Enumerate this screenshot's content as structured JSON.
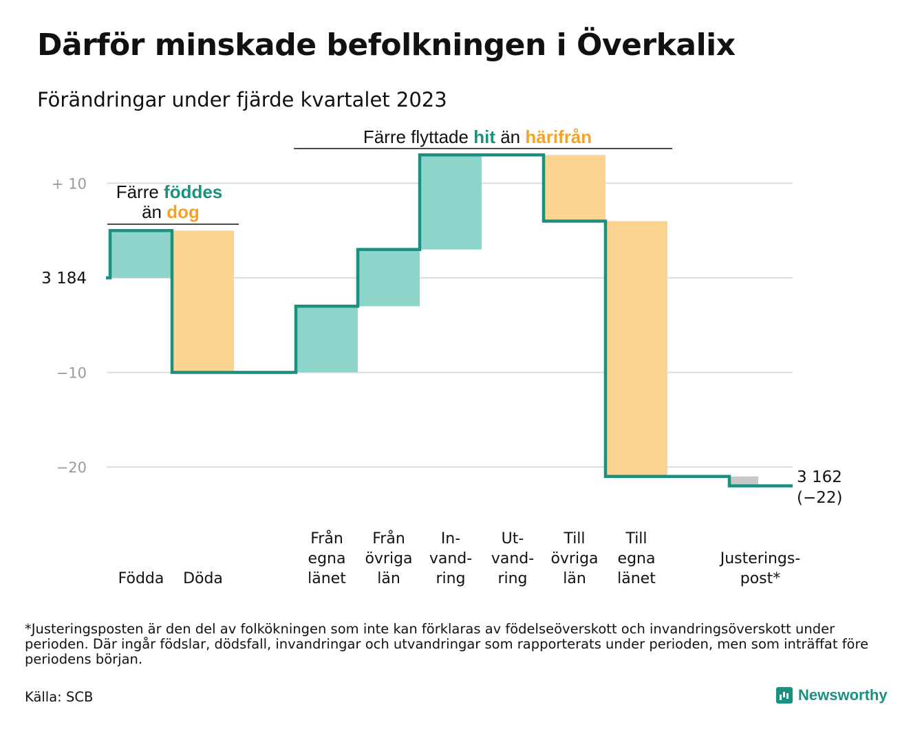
{
  "title": "Därför minskade befolkningen i Överkalix",
  "subtitle": "Förändringar under fjärde kvartalet 2023",
  "colors": {
    "increase": "#8dd5cb",
    "decrease": "#fbd58f",
    "adjustment": "#c8c8c8",
    "line": "#1a9080",
    "teal_text": "#1a9080",
    "orange_text": "#f3a327",
    "grid": "#dddddd"
  },
  "chart_data": {
    "type": "waterfall",
    "start_value": 3184,
    "end_value": 3162,
    "y_ticks": [
      {
        "value": 10,
        "label": "+  10"
      },
      {
        "value": 0,
        "label": "3  184"
      },
      {
        "value": -10,
        "label": "−10"
      },
      {
        "value": -20,
        "label": "−20"
      }
    ],
    "end_label_line1": "3 162",
    "end_label_line2": "(−22)",
    "steps": [
      {
        "label": [
          "Födda"
        ],
        "value": 5,
        "kind": "increase"
      },
      {
        "label": [
          "Döda"
        ],
        "value": -15,
        "kind": "decrease"
      },
      {
        "label": [],
        "value": 0,
        "kind": "gap"
      },
      {
        "label": [
          "Från",
          "egna",
          "länet"
        ],
        "value": 7,
        "kind": "increase"
      },
      {
        "label": [
          "Från",
          "övriga",
          "län"
        ],
        "value": 6,
        "kind": "increase"
      },
      {
        "label": [
          "In-",
          "vand-",
          "ring"
        ],
        "value": 10,
        "kind": "increase"
      },
      {
        "label": [
          "Ut-",
          "vand-",
          "ring"
        ],
        "value": 0,
        "kind": "decrease"
      },
      {
        "label": [
          "Till",
          "övriga",
          "län"
        ],
        "value": -7,
        "kind": "decrease"
      },
      {
        "label": [
          "Till",
          "egna",
          "länet"
        ],
        "value": -27,
        "kind": "decrease"
      },
      {
        "label": [],
        "value": 0,
        "kind": "gap"
      },
      {
        "label": [
          "Justerings-",
          "post*"
        ],
        "value": -1,
        "kind": "adjustment"
      }
    ],
    "annotations": {
      "births": {
        "line1_pre": "Färre ",
        "line1_hl": "föddes",
        "line2_pre": "än ",
        "line2_hl": "dog"
      },
      "moves": {
        "pre": "Färre flyttade ",
        "hl1": "hit",
        "mid": " än ",
        "hl2": "härifrån"
      }
    }
  },
  "footnote": "*Justeringsposten är den del av folkökningen som inte kan förklaras av födelseöverskott och invandringsöverskott under perioden. Där ingår födslar, dödsfall, invandringar och utvandringar som rapporterats under perioden, men som inträffat före periodens början.",
  "source": "Källa: SCB",
  "brand": "Newsworthy"
}
